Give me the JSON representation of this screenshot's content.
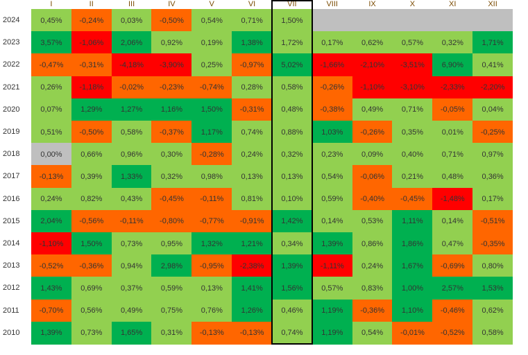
{
  "chart_data": {
    "type": "heatmap",
    "months": [
      "I",
      "II",
      "III",
      "IV",
      "V",
      "VI",
      "VII",
      "VIII",
      "IX",
      "X",
      "XI",
      "XII"
    ],
    "years": [
      "2024",
      "2023",
      "2022",
      "2021",
      "2020",
      "2019",
      "2018",
      "2017",
      "2016",
      "2015",
      "2014",
      "2013",
      "2012",
      "2011",
      "2010"
    ],
    "highlighted_month": "VII",
    "colors": {
      "light_green": "#92D050",
      "dark_green": "#00B050",
      "orange": "#FF6600",
      "red": "#FF0000",
      "gray": "#BFBFBF",
      "highlight_border": "#000000",
      "header_text": "#7A4A00"
    },
    "rows": [
      [
        "0,45%",
        "-0,24%",
        "0,03%",
        "-0,50%",
        "0,54%",
        "0,71%",
        "1,50%",
        "",
        "",
        "",
        "",
        ""
      ],
      [
        "3,57%",
        "-1,06%",
        "2,06%",
        "0,92%",
        "0,19%",
        "1,38%",
        "1,72%",
        "0,17%",
        "0,62%",
        "0,57%",
        "0,32%",
        "1,71%"
      ],
      [
        "-0,47%",
        "-0,31%",
        "-4,18%",
        "-3,90%",
        "0,25%",
        "-0,97%",
        "5,02%",
        "-1,66%",
        "-2,10%",
        "-3,51%",
        "6,90%",
        "0,41%"
      ],
      [
        "0,26%",
        "-1,18%",
        "-0,02%",
        "-0,23%",
        "-0,74%",
        "0,28%",
        "0,58%",
        "-0,26%",
        "-1,10%",
        "-3,10%",
        "-2,33%",
        "-2,20%"
      ],
      [
        "0,07%",
        "1,29%",
        "1,27%",
        "1,16%",
        "1,50%",
        "-0,31%",
        "0,48%",
        "-0,38%",
        "0,49%",
        "0,71%",
        "-0,05%",
        "0,04%"
      ],
      [
        "0,51%",
        "-0,50%",
        "0,58%",
        "-0,37%",
        "1,17%",
        "0,74%",
        "0,88%",
        "1,03%",
        "-0,26%",
        "0,35%",
        "0,01%",
        "-0,25%"
      ],
      [
        "0,00%",
        "0,66%",
        "0,96%",
        "0,30%",
        "-0,28%",
        "0,24%",
        "0,32%",
        "0,23%",
        "0,09%",
        "0,40%",
        "0,71%",
        "0,97%"
      ],
      [
        "-0,13%",
        "0,39%",
        "1,33%",
        "0,32%",
        "0,98%",
        "0,13%",
        "0,13%",
        "0,54%",
        "-0,06%",
        "0,21%",
        "0,48%",
        "0,36%"
      ],
      [
        "0,24%",
        "0,82%",
        "0,43%",
        "-0,45%",
        "-0,11%",
        "0,81%",
        "0,10%",
        "0,59%",
        "-0,40%",
        "-0,45%",
        "-1,48%",
        "0,17%"
      ],
      [
        "2,04%",
        "-0,56%",
        "-0,11%",
        "-0,80%",
        "-0,77%",
        "-0,91%",
        "1,42%",
        "0,14%",
        "0,53%",
        "1,11%",
        "0,14%",
        "-0,51%"
      ],
      [
        "-1,10%",
        "1,50%",
        "0,73%",
        "0,95%",
        "1,32%",
        "1,21%",
        "0,34%",
        "1,39%",
        "0,86%",
        "1,86%",
        "0,47%",
        "-0,35%"
      ],
      [
        "-0,52%",
        "-0,36%",
        "0,94%",
        "2,98%",
        "-0,95%",
        "-2,38%",
        "1,39%",
        "-1,11%",
        "0,24%",
        "1,67%",
        "-0,69%",
        "0,80%"
      ],
      [
        "1,43%",
        "0,69%",
        "0,37%",
        "0,59%",
        "0,13%",
        "1,41%",
        "1,56%",
        "0,57%",
        "0,83%",
        "1,00%",
        "2,57%",
        "1,53%"
      ],
      [
        "-0,70%",
        "0,56%",
        "0,49%",
        "0,75%",
        "0,76%",
        "1,26%",
        "0,46%",
        "1,19%",
        "-0,36%",
        "1,10%",
        "-0,46%",
        "0,62%"
      ],
      [
        "1,39%",
        "0,73%",
        "1,65%",
        "0,31%",
        "-0,13%",
        "-0,13%",
        "0,74%",
        "1,19%",
        "0,54%",
        "-0,01%",
        "-0,52%",
        "0,58%"
      ]
    ],
    "cell_colors": [
      [
        "light_green",
        "orange",
        "light_green",
        "orange",
        "light_green",
        "light_green",
        "light_green",
        "gray",
        "gray",
        "gray",
        "gray",
        "gray"
      ],
      [
        "dark_green",
        "red",
        "dark_green",
        "light_green",
        "light_green",
        "dark_green",
        "light_green",
        "light_green",
        "light_green",
        "light_green",
        "light_green",
        "dark_green"
      ],
      [
        "orange",
        "orange",
        "red",
        "red",
        "light_green",
        "orange",
        "dark_green",
        "red",
        "red",
        "red",
        "dark_green",
        "light_green"
      ],
      [
        "light_green",
        "red",
        "orange",
        "orange",
        "orange",
        "light_green",
        "light_green",
        "orange",
        "red",
        "red",
        "red",
        "red"
      ],
      [
        "light_green",
        "dark_green",
        "dark_green",
        "dark_green",
        "dark_green",
        "orange",
        "light_green",
        "orange",
        "light_green",
        "light_green",
        "orange",
        "light_green"
      ],
      [
        "light_green",
        "orange",
        "light_green",
        "orange",
        "dark_green",
        "light_green",
        "light_green",
        "dark_green",
        "orange",
        "light_green",
        "light_green",
        "orange"
      ],
      [
        "gray",
        "light_green",
        "light_green",
        "light_green",
        "orange",
        "light_green",
        "light_green",
        "light_green",
        "light_green",
        "light_green",
        "light_green",
        "light_green"
      ],
      [
        "orange",
        "light_green",
        "dark_green",
        "light_green",
        "light_green",
        "light_green",
        "light_green",
        "light_green",
        "orange",
        "light_green",
        "light_green",
        "light_green"
      ],
      [
        "light_green",
        "light_green",
        "light_green",
        "orange",
        "orange",
        "light_green",
        "light_green",
        "light_green",
        "orange",
        "orange",
        "red",
        "light_green"
      ],
      [
        "dark_green",
        "orange",
        "orange",
        "orange",
        "orange",
        "orange",
        "dark_green",
        "light_green",
        "light_green",
        "dark_green",
        "light_green",
        "orange"
      ],
      [
        "red",
        "dark_green",
        "light_green",
        "light_green",
        "dark_green",
        "dark_green",
        "light_green",
        "dark_green",
        "light_green",
        "dark_green",
        "light_green",
        "orange"
      ],
      [
        "orange",
        "orange",
        "light_green",
        "dark_green",
        "orange",
        "red",
        "dark_green",
        "red",
        "light_green",
        "dark_green",
        "orange",
        "light_green"
      ],
      [
        "dark_green",
        "light_green",
        "light_green",
        "light_green",
        "light_green",
        "dark_green",
        "dark_green",
        "light_green",
        "light_green",
        "dark_green",
        "dark_green",
        "dark_green"
      ],
      [
        "orange",
        "light_green",
        "light_green",
        "light_green",
        "light_green",
        "dark_green",
        "light_green",
        "dark_green",
        "orange",
        "dark_green",
        "orange",
        "light_green"
      ],
      [
        "dark_green",
        "light_green",
        "dark_green",
        "light_green",
        "orange",
        "orange",
        "light_green",
        "dark_green",
        "light_green",
        "orange",
        "orange",
        "light_green"
      ]
    ]
  }
}
